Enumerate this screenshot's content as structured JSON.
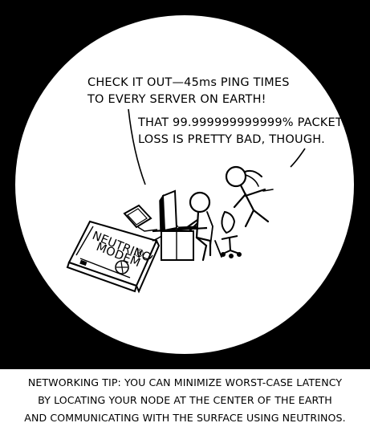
{
  "dialogue": {
    "line1": "CHECK IT OUT—45ms PING TIMES",
    "line2": "TO EVERY SERVER ON EARTH!",
    "reply1": "THAT 99.999999999999% PACKET",
    "reply2": "LOSS IS PRETTY BAD, THOUGH."
  },
  "device": {
    "label1": "NEUTRINO",
    "label2": "MODEM"
  },
  "caption": {
    "line1": "NETWORKING TIP: YOU CAN MINIMIZE WORST-CASE LATENCY",
    "line2": "BY LOCATING YOUR NODE AT THE CENTER OF THE EARTH",
    "line3": "AND COMMUNICATING WITH THE SURFACE USING NEUTRINOS."
  },
  "colors": {
    "background": "#000000",
    "circle": "#ffffff",
    "ink": "#000000"
  }
}
